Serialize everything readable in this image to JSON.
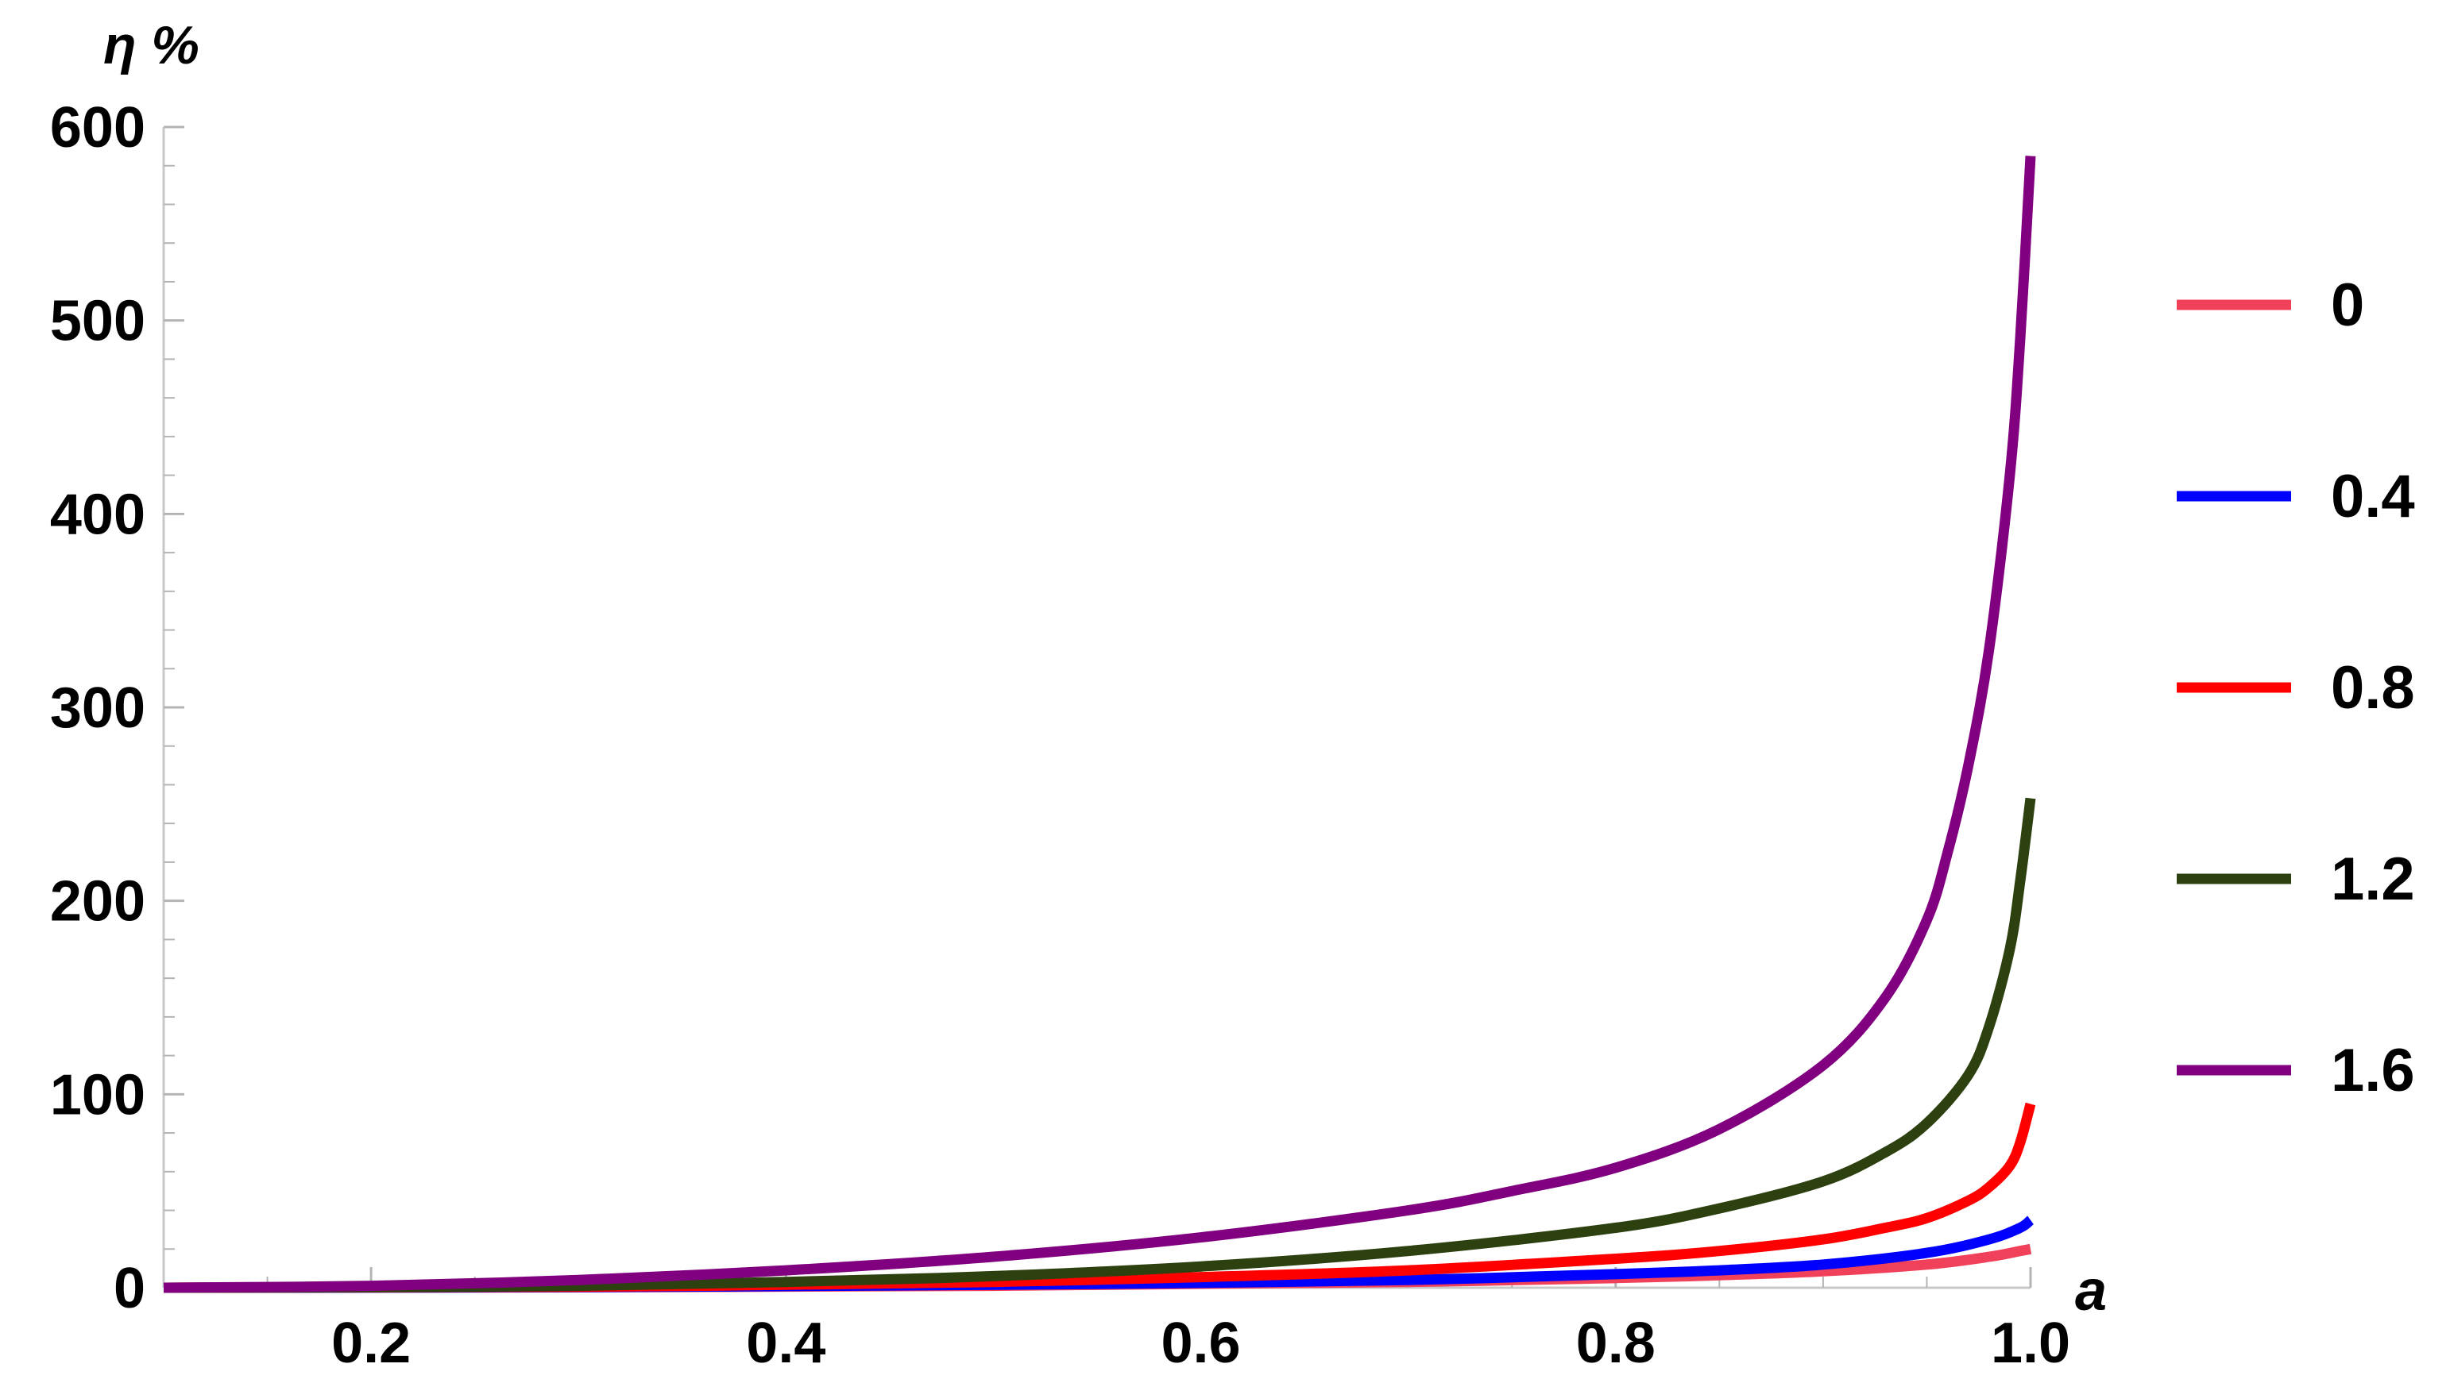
{
  "chart_data": {
    "type": "line",
    "title": "",
    "xlabel": "a",
    "ylabel": "η %",
    "xlim": [
      0.1,
      1.0
    ],
    "ylim": [
      0,
      600
    ],
    "x_ticks": [
      "0.2",
      "0.4",
      "0.6",
      "0.8",
      "1.0"
    ],
    "y_ticks": [
      "0",
      "100",
      "200",
      "300",
      "400",
      "500",
      "600"
    ],
    "grid": false,
    "legend_position": "right",
    "series": [
      {
        "name": "0",
        "color": "#f0405a",
        "points": [
          [
            0.1,
            0
          ],
          [
            0.3,
            0.2
          ],
          [
            0.5,
            1
          ],
          [
            0.6,
            2
          ],
          [
            0.7,
            3
          ],
          [
            0.8,
            5
          ],
          [
            0.85,
            6.5
          ],
          [
            0.9,
            8.5
          ],
          [
            0.95,
            12
          ],
          [
            0.98,
            16
          ],
          [
            0.995,
            19
          ],
          [
            1.0,
            20
          ]
        ]
      },
      {
        "name": "0.4",
        "color": "#0000ff",
        "points": [
          [
            0.1,
            0
          ],
          [
            0.3,
            0.3
          ],
          [
            0.5,
            1.5
          ],
          [
            0.6,
            2.5
          ],
          [
            0.7,
            4
          ],
          [
            0.8,
            7
          ],
          [
            0.85,
            9
          ],
          [
            0.9,
            12
          ],
          [
            0.95,
            18
          ],
          [
            0.98,
            25
          ],
          [
            0.995,
            31
          ],
          [
            1.0,
            35
          ]
        ]
      },
      {
        "name": "0.8",
        "color": "#ff0000",
        "points": [
          [
            0.1,
            0
          ],
          [
            0.3,
            0.5
          ],
          [
            0.4,
            1.5
          ],
          [
            0.5,
            3
          ],
          [
            0.6,
            5.5
          ],
          [
            0.7,
            9
          ],
          [
            0.8,
            15
          ],
          [
            0.85,
            19
          ],
          [
            0.9,
            25
          ],
          [
            0.93,
            31
          ],
          [
            0.95,
            36
          ],
          [
            0.97,
            45
          ],
          [
            0.98,
            52
          ],
          [
            0.99,
            63
          ],
          [
            0.995,
            75
          ],
          [
            1.0,
            95
          ]
        ]
      },
      {
        "name": "1.2",
        "color": "#2d4110",
        "points": [
          [
            0.1,
            0
          ],
          [
            0.2,
            0.3
          ],
          [
            0.3,
            1
          ],
          [
            0.4,
            3
          ],
          [
            0.5,
            6
          ],
          [
            0.6,
            11
          ],
          [
            0.7,
            19
          ],
          [
            0.8,
            31
          ],
          [
            0.85,
            41
          ],
          [
            0.9,
            55
          ],
          [
            0.93,
            70
          ],
          [
            0.95,
            85
          ],
          [
            0.97,
            110
          ],
          [
            0.98,
            135
          ],
          [
            0.99,
            175
          ],
          [
            0.995,
            210
          ],
          [
            1.0,
            253
          ]
        ]
      },
      {
        "name": "1.6",
        "color": "#800080",
        "points": [
          [
            0.1,
            0
          ],
          [
            0.2,
            1
          ],
          [
            0.3,
            4
          ],
          [
            0.4,
            9
          ],
          [
            0.5,
            16
          ],
          [
            0.6,
            26
          ],
          [
            0.7,
            40
          ],
          [
            0.75,
            50
          ],
          [
            0.8,
            62
          ],
          [
            0.85,
            82
          ],
          [
            0.9,
            115
          ],
          [
            0.93,
            150
          ],
          [
            0.95,
            190
          ],
          [
            0.96,
            225
          ],
          [
            0.97,
            270
          ],
          [
            0.98,
            330
          ],
          [
            0.99,
            420
          ],
          [
            0.995,
            490
          ],
          [
            1.0,
            585
          ]
        ]
      }
    ]
  }
}
